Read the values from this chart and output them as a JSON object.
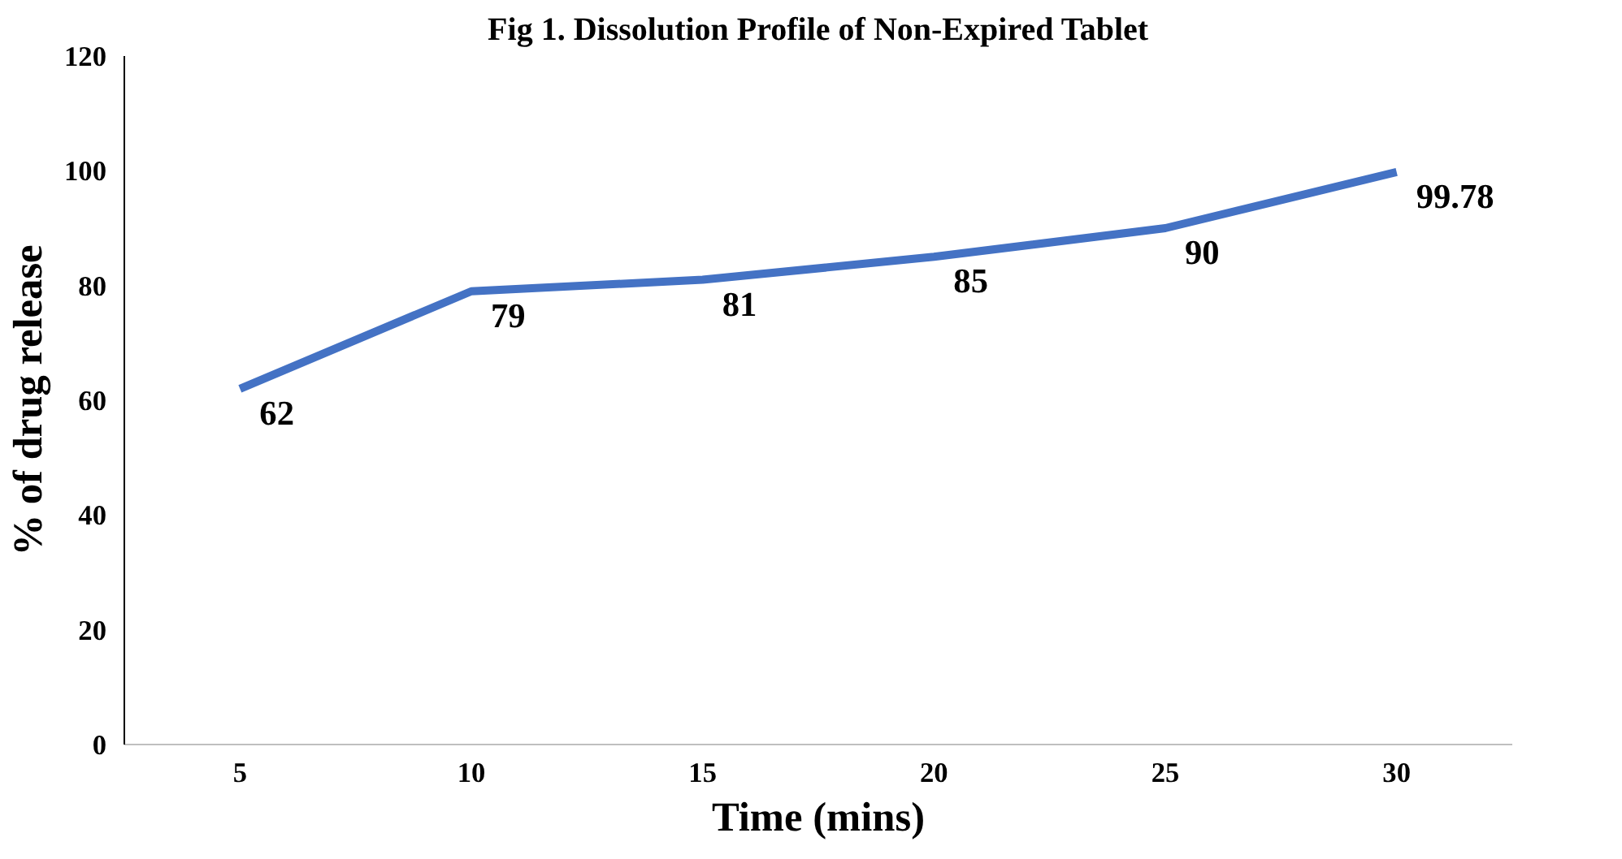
{
  "chart_data": {
    "type": "line",
    "title": "Fig 1. Dissolution Profile of Non-Expired Tablet",
    "xlabel": "Time (mins)",
    "ylabel": "% of drug release",
    "categories": [
      "5",
      "10",
      "15",
      "20",
      "25",
      "30"
    ],
    "series": [
      {
        "color": "#4472c4",
        "values": [
          62,
          79,
          81,
          85,
          90,
          99.78
        ]
      }
    ],
    "ylim": [
      0,
      120
    ],
    "yticks": [
      0,
      20,
      40,
      60,
      80,
      100,
      120
    ],
    "grid": false,
    "data_labels": true,
    "marker": "none",
    "line_style": "solid"
  }
}
